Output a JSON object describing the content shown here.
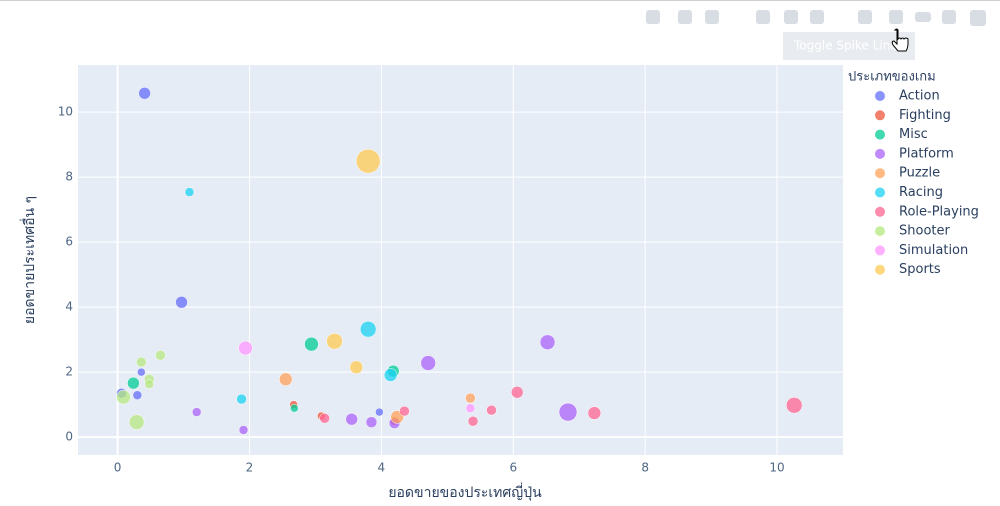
{
  "tooltip": "Toggle Spike Lines",
  "chart_data": {
    "type": "scatter",
    "x_label": "ยอดขายของประเทศญี่ปุ่น",
    "y_label": "ยอดขายประเทศอื่น ๆ",
    "legend_title": "ประเภทของเกม",
    "legend_position": "right",
    "grid": true,
    "xlim": [
      -0.6,
      11
    ],
    "xticks": [
      0,
      2,
      4,
      6,
      8,
      10
    ],
    "ylim": [
      -0.55,
      11.45
    ],
    "yticks": [
      0,
      2,
      4,
      6,
      8,
      10
    ],
    "series": [
      {
        "name": "Action",
        "color": "#636efa",
        "x": [
          0.41,
          0.97,
          0.36,
          0.3,
          0.06,
          3.97
        ],
        "values": [
          10.58,
          4.15,
          2.0,
          1.29,
          1.35,
          0.77
        ],
        "sizes": [
          12,
          12,
          8,
          9,
          10,
          8
        ]
      },
      {
        "name": "Fighting",
        "color": "#EF553B",
        "x": [
          2.67,
          3.09,
          4.2
        ],
        "values": [
          1.0,
          0.65,
          0.5
        ],
        "sizes": [
          8,
          8,
          9
        ]
      },
      {
        "name": "Misc",
        "color": "#00cc96",
        "x": [
          0.24,
          2.94,
          4.18,
          2.68
        ],
        "values": [
          1.66,
          2.86,
          2.03,
          0.89
        ],
        "sizes": [
          12,
          14,
          12,
          8
        ]
      },
      {
        "name": "Platform",
        "color": "#ab63fa",
        "x": [
          1.2,
          1.91,
          3.55,
          3.85,
          4.2,
          4.71,
          6.52,
          6.83
        ],
        "values": [
          0.77,
          0.22,
          0.55,
          0.46,
          0.43,
          2.28,
          2.92,
          0.77
        ],
        "sizes": [
          9,
          9,
          12,
          11,
          11,
          15,
          15,
          18
        ]
      },
      {
        "name": "Puzzle",
        "color": "#FFA15A",
        "x": [
          2.55,
          4.24,
          5.35
        ],
        "values": [
          1.78,
          0.62,
          1.2
        ],
        "sizes": [
          13,
          13,
          10
        ]
      },
      {
        "name": "Racing",
        "color": "#19d3f3",
        "x": [
          1.09,
          1.88,
          3.8,
          4.14
        ],
        "values": [
          7.54,
          1.17,
          3.32,
          1.91
        ],
        "sizes": [
          9,
          10,
          16,
          13
        ]
      },
      {
        "name": "Role-Playing",
        "color": "#FF6692",
        "x": [
          3.14,
          4.35,
          5.39,
          5.67,
          6.06,
          7.23,
          10.26
        ],
        "values": [
          0.58,
          0.8,
          0.49,
          0.83,
          1.38,
          0.74,
          0.98
        ],
        "sizes": [
          10,
          10,
          10,
          10,
          12,
          13,
          16
        ]
      },
      {
        "name": "Shooter",
        "color": "#B6E880",
        "x": [
          0.09,
          0.48,
          0.48,
          0.36,
          0.65,
          0.29
        ],
        "values": [
          1.23,
          1.78,
          1.63,
          2.31,
          2.52,
          0.46
        ],
        "sizes": [
          14,
          10,
          9,
          10,
          10,
          15
        ]
      },
      {
        "name": "Simulation",
        "color": "#FF97FF",
        "x": [
          1.94,
          5.35
        ],
        "values": [
          2.74,
          0.89
        ],
        "sizes": [
          14,
          9
        ]
      },
      {
        "name": "Sports",
        "color": "#FECB52",
        "x": [
          3.8,
          3.29,
          3.62
        ],
        "values": [
          8.49,
          2.95,
          2.15
        ],
        "sizes": [
          24,
          16,
          13
        ]
      }
    ]
  }
}
